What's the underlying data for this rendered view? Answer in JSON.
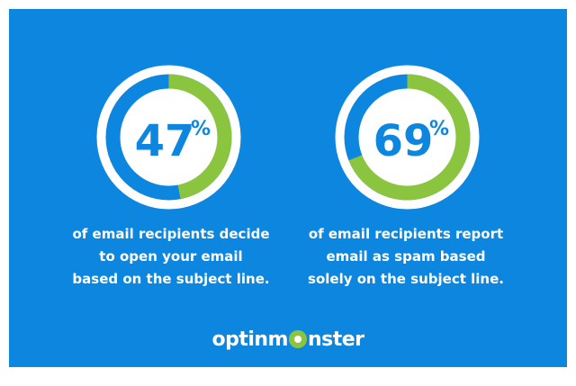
{
  "colors": {
    "background": "#0c86de",
    "ring_fill": "#8bc53f",
    "ring_track": "#0c86de",
    "ring_border": "#ffffff",
    "number": "#0c86de",
    "caption": "#ffffff"
  },
  "chart_data": [
    {
      "type": "pie",
      "value": 47,
      "unit": "%",
      "label": "47",
      "percent_sign": "%",
      "caption_lines": [
        "of email recipients decide",
        "to open your email",
        "based on the subject line."
      ]
    },
    {
      "type": "pie",
      "value": 69,
      "unit": "%",
      "label": "69",
      "percent_sign": "%",
      "caption_lines": [
        "of email recipients report",
        "email as spam based",
        "solely on the subject line."
      ]
    }
  ],
  "brand": {
    "text_before": "optinm",
    "text_after": "nster",
    "icon": "monster-logo-icon"
  }
}
